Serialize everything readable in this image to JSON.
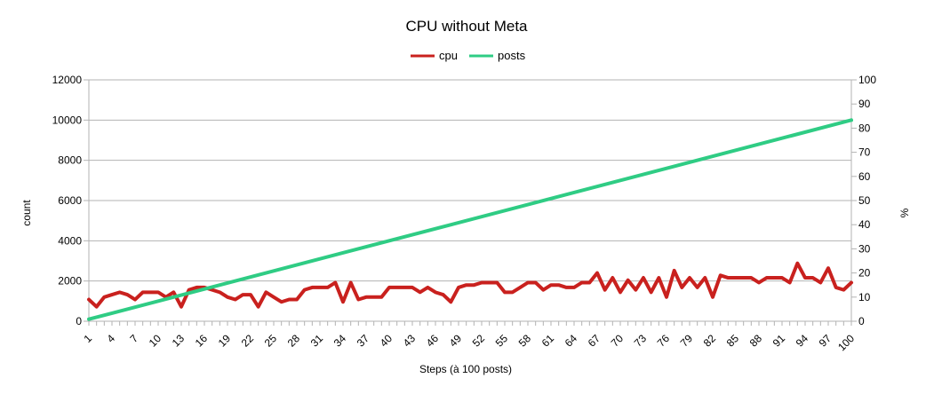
{
  "chart_data": {
    "type": "line",
    "title": "CPU without Meta",
    "xlabel": "Steps (à 100 posts)",
    "ylabel": "count",
    "y2label": "%",
    "ylim": [
      0,
      12000
    ],
    "y2lim": [
      0,
      100
    ],
    "yticks": [
      "0",
      "2000",
      "4000",
      "6000",
      "8000",
      "10000",
      "12000"
    ],
    "y2ticks": [
      "0",
      "10",
      "20",
      "30",
      "40",
      "50",
      "60",
      "70",
      "80",
      "90",
      "100"
    ],
    "xticks": [
      "1",
      "4",
      "7",
      "10",
      "13",
      "16",
      "19",
      "22",
      "25",
      "28",
      "31",
      "34",
      "37",
      "40",
      "43",
      "46",
      "49",
      "52",
      "55",
      "58",
      "61",
      "64",
      "67",
      "70",
      "73",
      "76",
      "79",
      "82",
      "85",
      "88",
      "91",
      "94",
      "97",
      "100"
    ],
    "legend_position": "top-center",
    "colors": {
      "cpu": "#c9211e",
      "posts": "#2fcc84"
    },
    "series": [
      {
        "name": "cpu",
        "axis": "right",
        "x": [
          1,
          2,
          3,
          4,
          5,
          6,
          7,
          8,
          9,
          10,
          11,
          12,
          13,
          14,
          15,
          16,
          17,
          18,
          19,
          20,
          21,
          22,
          23,
          24,
          25,
          26,
          27,
          28,
          29,
          30,
          31,
          32,
          33,
          34,
          35,
          36,
          37,
          38,
          39,
          40,
          41,
          42,
          43,
          44,
          45,
          46,
          47,
          48,
          49,
          50,
          51,
          52,
          53,
          54,
          55,
          56,
          57,
          58,
          59,
          60,
          61,
          62,
          63,
          64,
          65,
          66,
          67,
          68,
          69,
          70,
          71,
          72,
          73,
          74,
          75,
          76,
          77,
          78,
          79,
          80,
          81,
          82,
          83,
          84,
          85,
          86,
          87,
          88,
          89,
          90,
          91,
          92,
          93,
          94,
          95,
          96,
          97,
          98,
          99,
          100
        ],
        "values": [
          9,
          6,
          10,
          11,
          12,
          11,
          9,
          12,
          12,
          12,
          10,
          12,
          6,
          13,
          14,
          14,
          13,
          12,
          10,
          9,
          11,
          11,
          6,
          12,
          10,
          8,
          9,
          9,
          13,
          14,
          14,
          14,
          16,
          8,
          16,
          9,
          10,
          10,
          10,
          14,
          14,
          14,
          14,
          12,
          14,
          12,
          11,
          8,
          14,
          15,
          15,
          16,
          16,
          16,
          12,
          12,
          14,
          16,
          16,
          13,
          15,
          15,
          14,
          14,
          16,
          16,
          20,
          13,
          18,
          12,
          17,
          13,
          18,
          12,
          18,
          10,
          21,
          14,
          18,
          14,
          18,
          10,
          19,
          18,
          18,
          18,
          18,
          16,
          18,
          18,
          18,
          16,
          24,
          18,
          18,
          16,
          22,
          14,
          13,
          16
        ]
      },
      {
        "name": "posts",
        "axis": "left",
        "x": [
          1,
          100
        ],
        "values": [
          100,
          10000
        ]
      }
    ]
  }
}
